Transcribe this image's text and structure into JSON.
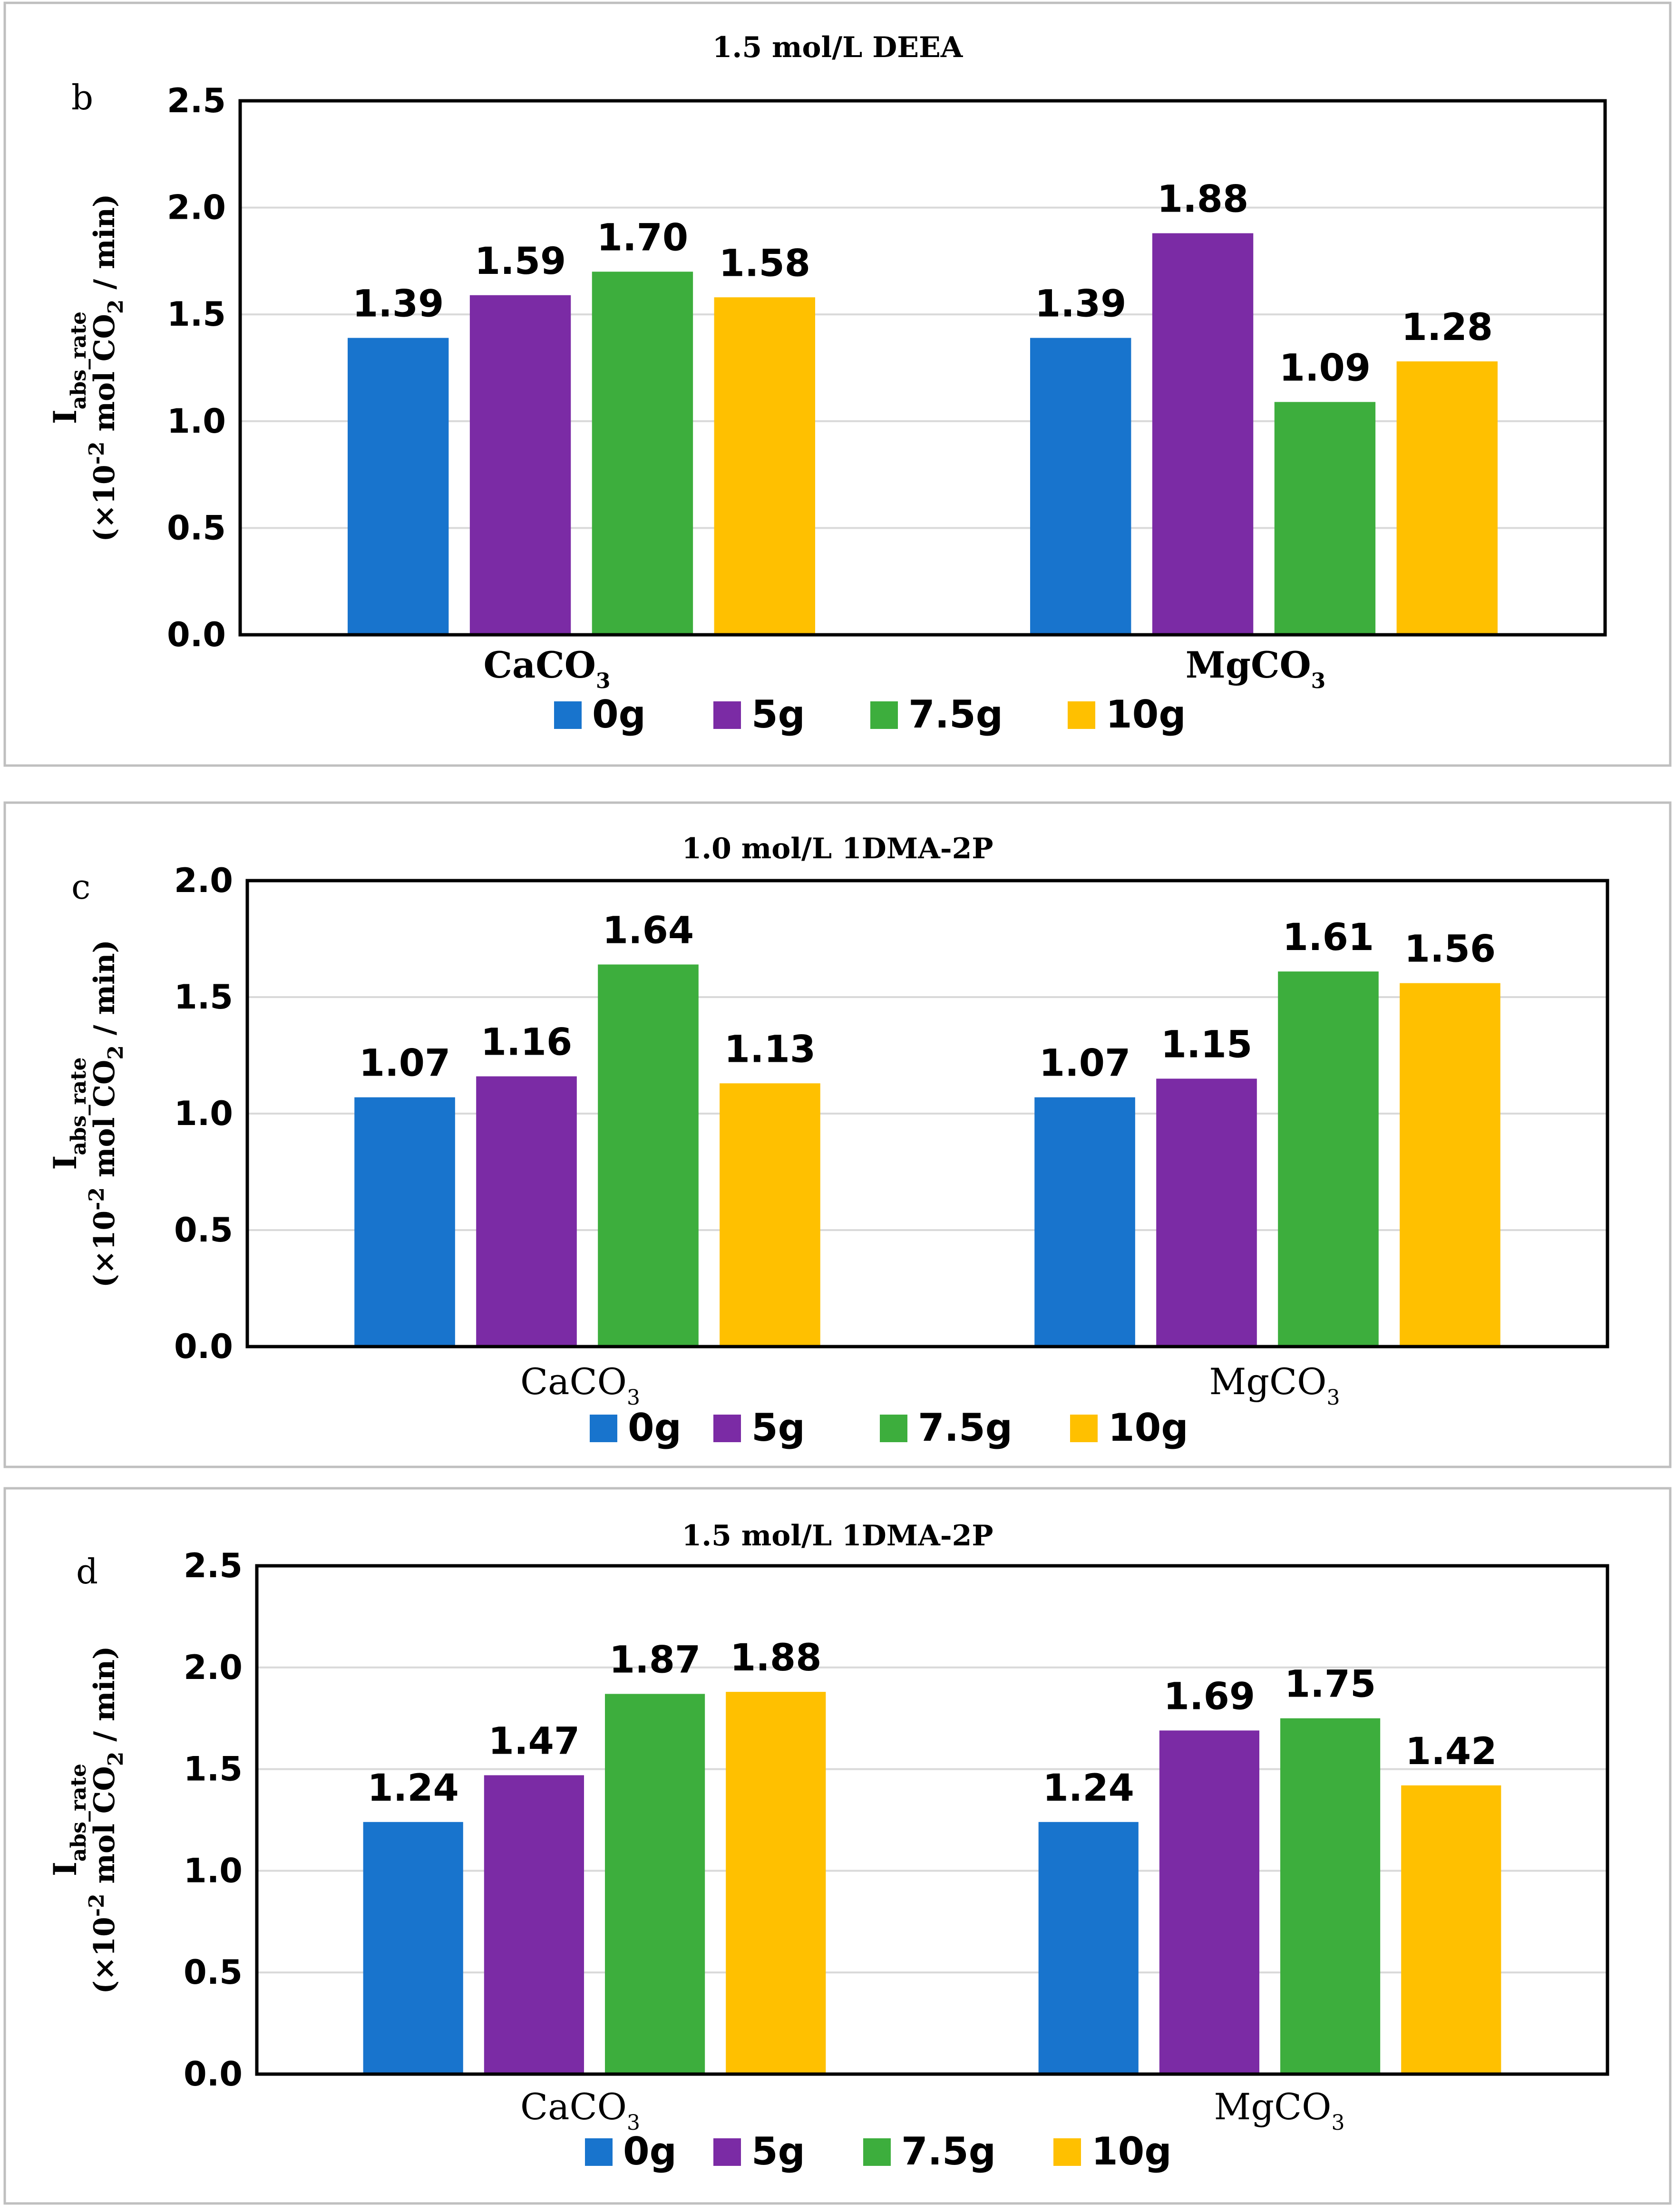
{
  "colors": {
    "0g": "#1874CD",
    "5g": "#7B2BA5",
    "7.5g": "#3DAE3D",
    "10g": "#FFC000",
    "grid": "#d9d9d9",
    "frame": "#bfbfbf"
  },
  "chart_data": [
    {
      "type": "bar",
      "panel": "b",
      "title": "1.5 mol/L DEEA",
      "ylabel_main": "I",
      "ylabel_sub": "abs_rate",
      "ylabel_unit": "(×10",
      "ylabel_exp": "-2",
      "ylabel_rest": " mol CO",
      "ylabel_co2sub": "2",
      "ylabel_end": " / min)",
      "ylim": [
        0,
        2.5
      ],
      "ticks": [
        "0.0",
        "0.5",
        "1.0",
        "1.5",
        "2.0",
        "2.5"
      ],
      "categories": [
        {
          "main": "CaCO",
          "sub": "3"
        },
        {
          "main": "MgCO",
          "sub": "3"
        }
      ],
      "category_bold": true,
      "series": [
        {
          "name": "0g",
          "values": [
            1.39,
            1.39
          ],
          "labels": [
            "1.39",
            "1.39"
          ]
        },
        {
          "name": "5g",
          "values": [
            1.59,
            1.88
          ],
          "labels": [
            "1.59",
            "1.88"
          ]
        },
        {
          "name": "7.5g",
          "values": [
            1.7,
            1.09
          ],
          "labels": [
            "1.70",
            "1.09"
          ]
        },
        {
          "name": "10g",
          "values": [
            1.58,
            1.28
          ],
          "labels": [
            "1.58",
            "1.28"
          ]
        }
      ]
    },
    {
      "type": "bar",
      "panel": "c",
      "title": "1.0 mol/L 1DMA-2P",
      "ylabel_main": "I",
      "ylabel_sub": "abs_rate",
      "ylabel_unit": "(×10",
      "ylabel_exp": "-2",
      "ylabel_rest": " mol CO",
      "ylabel_co2sub": "2",
      "ylabel_end": " / min)",
      "ylim": [
        0,
        2.0
      ],
      "ticks": [
        "0.0",
        "0.5",
        "1.0",
        "1.5",
        "2.0"
      ],
      "categories": [
        {
          "main": "CaCO",
          "sub": "3"
        },
        {
          "main": "MgCO",
          "sub": "3"
        }
      ],
      "category_bold": false,
      "series": [
        {
          "name": "0g",
          "values": [
            1.07,
            1.07
          ],
          "labels": [
            "1.07",
            "1.07"
          ]
        },
        {
          "name": "5g",
          "values": [
            1.16,
            1.15
          ],
          "labels": [
            "1.16",
            "1.15"
          ]
        },
        {
          "name": "7.5g",
          "values": [
            1.64,
            1.61
          ],
          "labels": [
            "1.64",
            "1.61"
          ]
        },
        {
          "name": "10g",
          "values": [
            1.13,
            1.56
          ],
          "labels": [
            "1.13",
            "1.56"
          ]
        }
      ]
    },
    {
      "type": "bar",
      "panel": "d",
      "title": "1.5 mol/L 1DMA-2P",
      "ylabel_main": "I",
      "ylabel_sub": "abs_rate",
      "ylabel_unit": "(×10",
      "ylabel_exp": "-2",
      "ylabel_rest": " mol CO",
      "ylabel_co2sub": "2",
      "ylabel_end": " / min)",
      "ylim": [
        0,
        2.5
      ],
      "ticks": [
        "0.0",
        "0.5",
        "1.0",
        "1.5",
        "2.0",
        "2.5"
      ],
      "categories": [
        {
          "main": "CaCO",
          "sub": "3"
        },
        {
          "main": "MgCO",
          "sub": "3"
        }
      ],
      "category_bold": false,
      "series": [
        {
          "name": "0g",
          "values": [
            1.24,
            1.24
          ],
          "labels": [
            "1.24",
            "1.24"
          ]
        },
        {
          "name": "5g",
          "values": [
            1.47,
            1.69
          ],
          "labels": [
            "1.47",
            "1.69"
          ]
        },
        {
          "name": "7.5g",
          "values": [
            1.87,
            1.75
          ],
          "labels": [
            "1.87",
            "1.75"
          ]
        },
        {
          "name": "10g",
          "values": [
            1.88,
            1.42
          ],
          "labels": [
            "1.88",
            "1.42"
          ]
        }
      ]
    }
  ]
}
